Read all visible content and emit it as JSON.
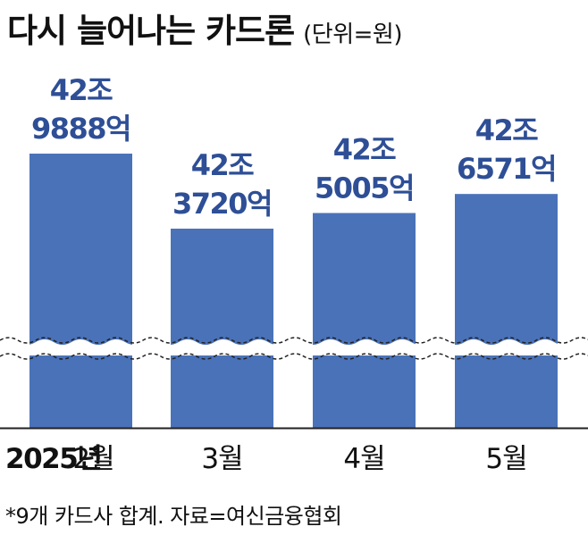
{
  "title": "다시 늘어나는 카드론",
  "unit_label": "(단위=원)",
  "year_label": "2025년",
  "footnote": "*9개 카드사 합계. 자료=여신금융협회",
  "colors": {
    "bar": "#4a72b8",
    "value_label": "#2e4f96",
    "text": "#111111"
  },
  "chart_data": {
    "type": "bar",
    "categories": [
      "2월",
      "3월",
      "4월",
      "5월"
    ],
    "values": [
      429888,
      423720,
      425005,
      426571
    ],
    "value_unit": "억원",
    "value_labels": [
      [
        "42조",
        "9888억"
      ],
      [
        "42조",
        "3720억"
      ],
      [
        "42조",
        "5005억"
      ],
      [
        "42조",
        "6571억"
      ]
    ],
    "axis_break": true,
    "xlabel": "",
    "ylabel": "",
    "ylim": [
      420000,
      431000
    ],
    "grid": false,
    "legend": "none"
  }
}
